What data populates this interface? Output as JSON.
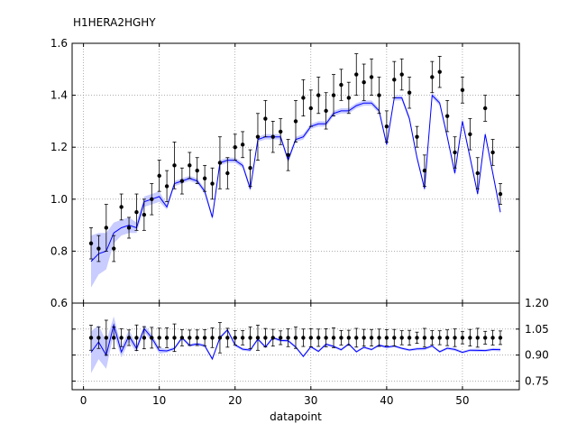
{
  "chart_data": {
    "type": "line",
    "title": "H1HERA2HGHY",
    "xlabel": "datapoint",
    "xlim": [
      -1.5,
      57.5
    ],
    "xticks": [
      0,
      10,
      20,
      30,
      40,
      50
    ],
    "grid": true,
    "colors": {
      "data": "#000000",
      "theory_line": "#0000ff",
      "theory_band": "#c8ccff"
    },
    "top_panel": {
      "ylim": [
        0.6,
        1.6
      ],
      "yticks": [
        0.6,
        0.8,
        1.0,
        1.2,
        1.4,
        1.6
      ],
      "ytick_labels": [
        "0.6",
        "0.8",
        "1.0",
        "1.2",
        "1.4",
        "1.6"
      ],
      "x": [
        1,
        2,
        3,
        4,
        5,
        6,
        7,
        8,
        9,
        10,
        11,
        12,
        13,
        14,
        15,
        16,
        17,
        18,
        19,
        20,
        21,
        22,
        23,
        24,
        25,
        26,
        27,
        28,
        29,
        30,
        31,
        32,
        33,
        34,
        35,
        36,
        37,
        38,
        39,
        40,
        41,
        42,
        43,
        44,
        45,
        46,
        47,
        48,
        49,
        50,
        51,
        52,
        53,
        54,
        55
      ],
      "data": [
        0.83,
        0.81,
        0.89,
        0.81,
        0.97,
        0.89,
        0.95,
        0.94,
        1.0,
        1.09,
        1.05,
        1.13,
        1.07,
        1.13,
        1.11,
        1.08,
        1.06,
        1.14,
        1.1,
        1.2,
        1.21,
        1.12,
        1.24,
        1.31,
        1.24,
        1.26,
        1.17,
        1.3,
        1.39,
        1.35,
        1.4,
        1.34,
        1.4,
        1.44,
        1.39,
        1.48,
        1.45,
        1.47,
        1.4,
        1.28,
        1.46,
        1.48,
        1.41,
        1.24,
        1.11,
        1.47,
        1.49,
        1.32,
        1.18,
        1.42,
        1.25,
        1.1,
        1.35,
        1.18,
        1.02
      ],
      "err": [
        0.06,
        0.05,
        0.09,
        0.05,
        0.05,
        0.04,
        0.07,
        0.06,
        0.06,
        0.06,
        0.06,
        0.09,
        0.05,
        0.05,
        0.05,
        0.05,
        0.06,
        0.1,
        0.06,
        0.05,
        0.05,
        0.07,
        0.09,
        0.07,
        0.06,
        0.05,
        0.06,
        0.08,
        0.07,
        0.07,
        0.07,
        0.07,
        0.08,
        0.06,
        0.06,
        0.08,
        0.07,
        0.07,
        0.07,
        0.06,
        0.07,
        0.06,
        0.06,
        0.04,
        0.06,
        0.06,
        0.06,
        0.06,
        0.06,
        0.05,
        0.06,
        0.06,
        0.05,
        0.05,
        0.04
      ],
      "theory": [
        0.76,
        0.79,
        0.8,
        0.87,
        0.89,
        0.9,
        0.89,
        0.99,
        1.0,
        1.01,
        0.97,
        1.06,
        1.07,
        1.08,
        1.07,
        1.03,
        0.93,
        1.14,
        1.15,
        1.15,
        1.13,
        1.04,
        1.23,
        1.24,
        1.24,
        1.24,
        1.15,
        1.23,
        1.24,
        1.28,
        1.29,
        1.29,
        1.33,
        1.34,
        1.34,
        1.36,
        1.37,
        1.37,
        1.34,
        1.21,
        1.39,
        1.39,
        1.31,
        1.16,
        1.04,
        1.4,
        1.37,
        1.24,
        1.1,
        1.3,
        1.16,
        1.02,
        1.25,
        1.1,
        0.95
      ],
      "band": [
        0.1,
        0.08,
        0.07,
        0.04,
        0.03,
        0.03,
        0.02,
        0.02,
        0.02,
        0.02,
        0.01,
        0.01,
        0.01,
        0.01,
        0.01,
        0.01,
        0.01,
        0.01,
        0.01,
        0.01,
        0.01,
        0.01,
        0.01,
        0.01,
        0.01,
        0.01,
        0.01,
        0.01,
        0.01,
        0.01,
        0.01,
        0.01,
        0.01,
        0.01,
        0.01,
        0.01,
        0.01,
        0.01,
        0.01,
        0.01,
        0.01,
        0.01,
        0.01,
        0.01,
        0.01,
        0.01,
        0.01,
        0.01,
        0.01,
        0.01,
        0.01,
        0.01,
        0.01,
        0.01,
        0.01
      ]
    },
    "bottom_panel": {
      "ylim": [
        0.7,
        1.2
      ],
      "yticks": [
        0.75,
        0.9,
        1.05,
        1.2
      ],
      "ytick_labels": [
        "0.75",
        "0.90",
        "1.05",
        "1.20"
      ],
      "data_ratio": 1.0
    }
  }
}
